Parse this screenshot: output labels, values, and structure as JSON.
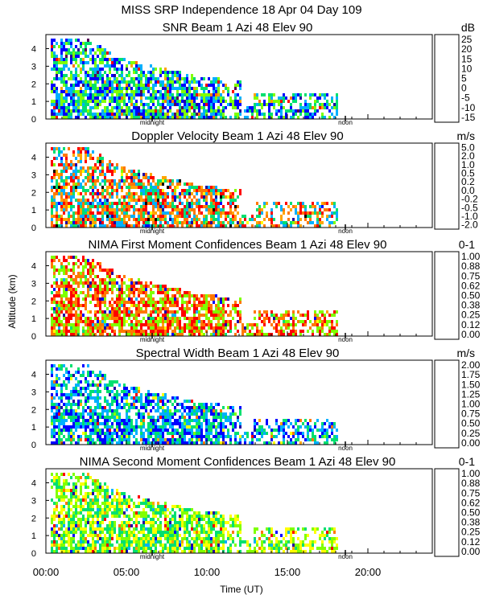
{
  "header": {
    "title": "MISS SRP Independence  18 Apr 04 Day 109"
  },
  "y_axis_label": "Altitude (km)",
  "x_axis": {
    "label": "Time (UT)",
    "ticks": [
      "00:00",
      "05:00",
      "10:00",
      "15:00",
      "20:00"
    ],
    "tick_hours": [
      0,
      5,
      10,
      15,
      20
    ],
    "range_hours": [
      0,
      24
    ],
    "midnight_label": "midnight",
    "noon_label": "noon",
    "midnight_hour": 6.6,
    "noon_hour": 18.6
  },
  "chart_data": [
    {
      "type": "heatmap",
      "title": "SNR Beam 1 Azi  48 Elev 90",
      "unit": "dB",
      "ylim": [
        0,
        4.8
      ],
      "yticks": [
        0,
        1,
        2,
        3,
        4
      ],
      "colorbar": {
        "labels": [
          "25",
          "20",
          "15",
          "10",
          "5",
          "0",
          "-5",
          "-10",
          "-15"
        ],
        "colors": [
          "#ffa500",
          "#ff7800",
          "#ff0000",
          "#550055",
          "#2200a0",
          "#0000ff",
          "#00b0ff",
          "#00e070",
          "#80ff00"
        ]
      },
      "visible_extent_hours": [
        0.3,
        18.1
      ],
      "dominant_levels": [
        "-15",
        "-10",
        "-5",
        "0"
      ]
    },
    {
      "type": "heatmap",
      "title": "Doppler Velocity Beam 1 Azi  48 Elev 90",
      "unit": "m/s",
      "ylim": [
        0,
        4.8
      ],
      "yticks": [
        0,
        1,
        2,
        3,
        4
      ],
      "colorbar": {
        "labels": [
          "5.0",
          "2.0",
          "1.0",
          "0.5",
          "0.2",
          "0.0",
          "-0.2",
          "-0.5",
          "-1.0",
          "-2.0"
        ],
        "colors": [
          "#000000",
          "#2200a0",
          "#0000ff",
          "#00b0ff",
          "#00e070",
          "#80ff00",
          "#ffff00",
          "#ffa500",
          "#ff7800",
          "#ff0000"
        ]
      },
      "visible_extent_hours": [
        0.3,
        18.1
      ],
      "dominant_levels": [
        "-2.0",
        "-1.0",
        "-0.5",
        "0.2",
        "0.5"
      ]
    },
    {
      "type": "heatmap",
      "title": "NIMA First Moment Confidences Beam 1 Azi  48 Elev 90",
      "unit": "0-1",
      "ylim": [
        0,
        4.8
      ],
      "yticks": [
        0,
        1,
        2,
        3,
        4
      ],
      "colorbar": {
        "labels": [
          "1.00",
          "0.88",
          "0.75",
          "0.62",
          "0.50",
          "0.38",
          "0.25",
          "0.12",
          "0.00"
        ],
        "colors": [
          "#ff0000",
          "#ff7800",
          "#ffa500",
          "#ffff00",
          "#80ff00",
          "#00e070",
          "#00b0ff",
          "#0000ff",
          "#2200a0"
        ]
      },
      "visible_extent_hours": [
        0.3,
        18.1
      ],
      "dominant_levels": [
        "1.00",
        "0.88",
        "0.50"
      ]
    },
    {
      "type": "heatmap",
      "title": "Spectral Width Beam 1 Azi  48 Elev 90",
      "unit": "m/s",
      "ylim": [
        0,
        4.8
      ],
      "yticks": [
        0,
        1,
        2,
        3,
        4
      ],
      "colorbar": {
        "labels": [
          "2.00",
          "1.75",
          "1.50",
          "1.25",
          "1.00",
          "0.75",
          "0.50",
          "0.25",
          "0.00"
        ],
        "colors": [
          "#ff0000",
          "#ff7800",
          "#ffa500",
          "#ffff00",
          "#80ff00",
          "#00e070",
          "#00b0ff",
          "#0000ff",
          "#2200a0"
        ]
      },
      "visible_extent_hours": [
        0.3,
        18.1
      ],
      "dominant_levels": [
        "0.50",
        "0.75",
        "0.25"
      ]
    },
    {
      "type": "heatmap",
      "title": "NIMA Second Moment Confidences Beam 1 Azi  48 Elev 90",
      "unit": "0-1",
      "ylim": [
        0,
        4.8
      ],
      "yticks": [
        0,
        1,
        2,
        3,
        4
      ],
      "colorbar": {
        "labels": [
          "1.00",
          "0.88",
          "0.75",
          "0.62",
          "0.50",
          "0.38",
          "0.25",
          "0.12",
          "0.00"
        ],
        "colors": [
          "#ff0000",
          "#ff7800",
          "#ffa500",
          "#ffff00",
          "#80ff00",
          "#00e070",
          "#00b0ff",
          "#0000ff",
          "#2200a0"
        ]
      },
      "visible_extent_hours": [
        0.3,
        18.1
      ],
      "dominant_levels": [
        "0.50",
        "0.38",
        "0.62"
      ]
    }
  ]
}
